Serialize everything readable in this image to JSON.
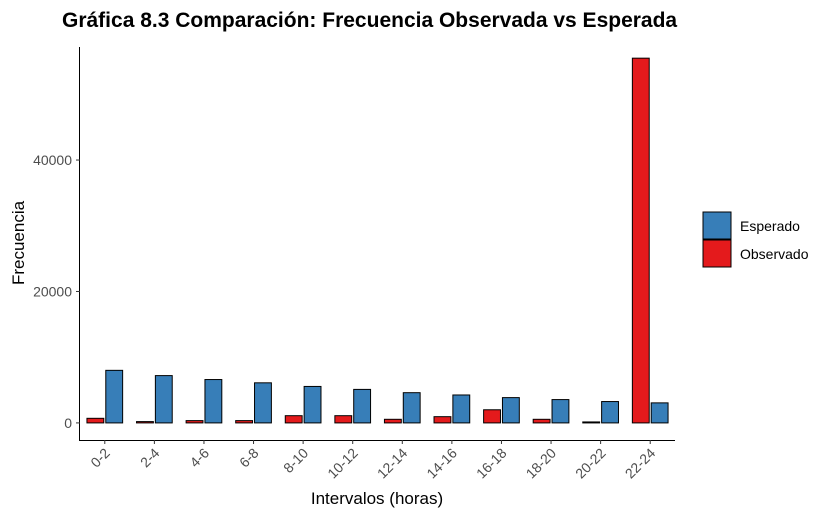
{
  "chart_data": {
    "type": "bar",
    "title": "Gráfica 8.3 Comparación: Frecuencia Observada vs Esperada",
    "xlabel": "Intervalos (horas)",
    "ylabel": "Frecuencia",
    "categories": [
      "0-2",
      "2-4",
      "4-6",
      "6-8",
      "8-10",
      "10-12",
      "12-14",
      "14-16",
      "16-18",
      "18-20",
      "20-22",
      "22-24"
    ],
    "series": [
      {
        "name": "Observado",
        "color": "#e41a1c",
        "values": [
          700,
          200,
          350,
          350,
          1100,
          1100,
          550,
          950,
          2000,
          550,
          150,
          55500
        ]
      },
      {
        "name": "Esperado",
        "color": "#377eb8",
        "values": [
          8000,
          7200,
          6600,
          6100,
          5550,
          5100,
          4600,
          4250,
          3850,
          3550,
          3250,
          3050
        ]
      }
    ],
    "yticks": [
      0,
      20000,
      40000
    ],
    "ytick_labels": [
      "0",
      "20000",
      "40000"
    ],
    "ylim": [
      -2600,
      57200
    ],
    "grid": false,
    "legend": {
      "placement": "right",
      "entries": [
        {
          "label": "Esperado",
          "color": "#377eb8"
        },
        {
          "label": "Observado",
          "color": "#e41a1c"
        }
      ]
    }
  }
}
